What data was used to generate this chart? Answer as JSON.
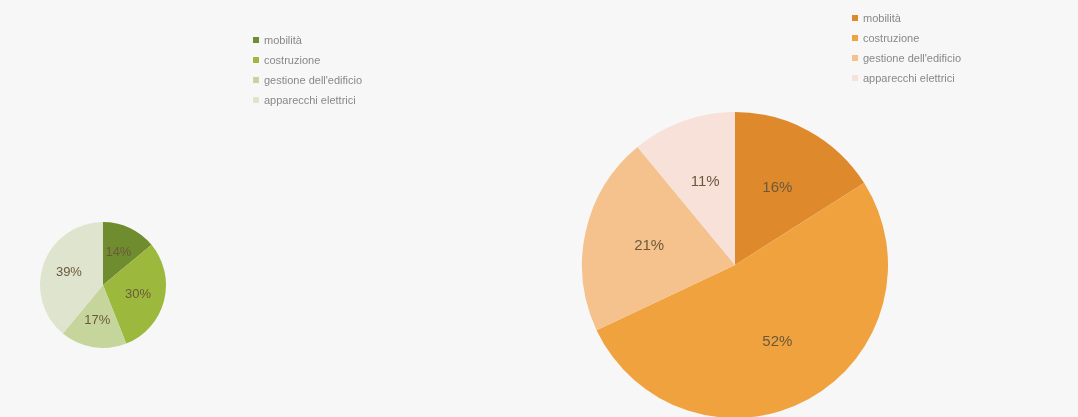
{
  "chart_data": [
    {
      "type": "pie",
      "categories": [
        "mobilità",
        "costruzione",
        "gestione dell'edificio",
        "apparecchi elettrici"
      ],
      "values": [
        14,
        30,
        17,
        39
      ],
      "value_labels": [
        "14%",
        "30%",
        "17%",
        "39%"
      ],
      "colors": [
        "#6f8c2f",
        "#9cb93e",
        "#c6d59c",
        "#dfe4cf"
      ],
      "legend": "top right"
    },
    {
      "type": "pie",
      "categories": [
        "mobilità",
        "costruzione",
        "gestione dell'edificio",
        "apparecchi elettrici"
      ],
      "values": [
        16,
        52,
        21,
        11
      ],
      "value_labels": [
        "16%",
        "52%",
        "21%",
        "11%"
      ],
      "colors": [
        "#de8a2c",
        "#f0a23e",
        "#f5c28e",
        "#f8e1d8"
      ],
      "legend": "top right"
    }
  ]
}
